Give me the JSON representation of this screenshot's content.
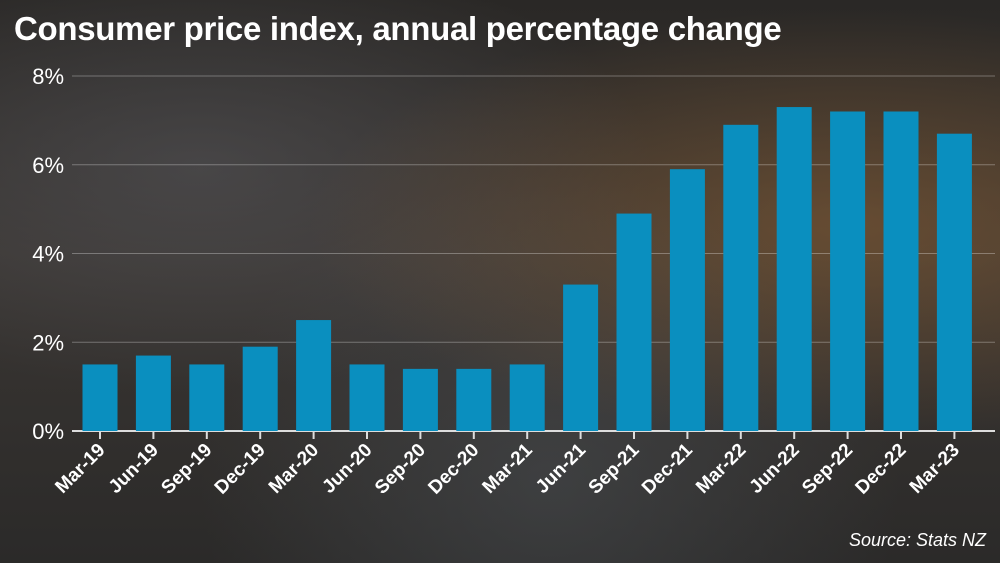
{
  "chart_data": {
    "type": "bar",
    "title": "Consumer price index, annual percentage change",
    "source": "Source: Stats NZ",
    "categories": [
      "Mar-19",
      "Jun-19",
      "Sep-19",
      "Dec-19",
      "Mar-20",
      "Jun-20",
      "Sep-20",
      "Dec-20",
      "Mar-21",
      "Jun-21",
      "Sep-21",
      "Dec-21",
      "Mar-22",
      "Jun-22",
      "Sep-22",
      "Dec-22",
      "Mar-23"
    ],
    "values": [
      1.5,
      1.7,
      1.5,
      1.9,
      2.5,
      1.5,
      1.4,
      1.4,
      1.5,
      3.3,
      4.9,
      5.9,
      6.9,
      7.3,
      7.2,
      7.2,
      6.7
    ],
    "ylim": [
      0,
      8
    ],
    "yticks": [
      0,
      2,
      4,
      6,
      8
    ],
    "ytick_labels": [
      "0%",
      "2%",
      "4%",
      "6%",
      "8%"
    ],
    "xlabel": "",
    "ylabel": "",
    "grid": true,
    "bar_color": "#0a8fbf"
  }
}
